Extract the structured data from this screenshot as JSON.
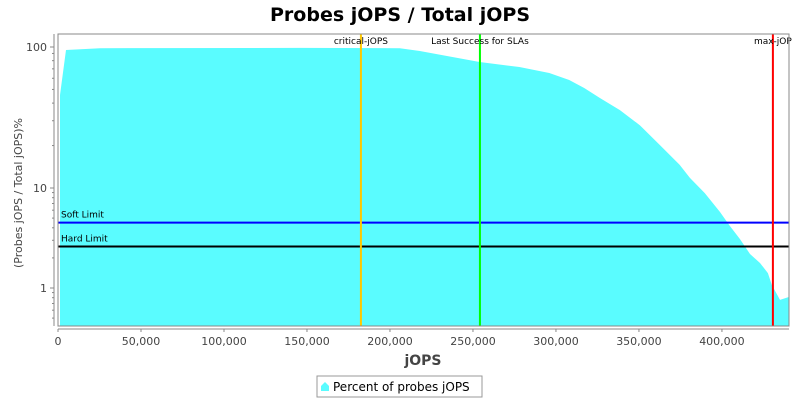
{
  "chart_data": {
    "type": "area",
    "title": "Probes jOPS / Total jOPS",
    "xlabel": "jOPS",
    "ylabel": "(Probes jOPS / Total jOPS)%",
    "xlim": [
      0,
      440400
    ],
    "ylim": [
      0.42,
      124
    ],
    "yscale": "log",
    "x_ticks": [
      0,
      50000,
      100000,
      150000,
      200000,
      250000,
      300000,
      350000,
      400000
    ],
    "x_tick_labels": [
      "0",
      "50,000",
      "100,000",
      "150,000",
      "200,000",
      "250,000",
      "300,000",
      "350,000",
      "400,000"
    ],
    "y_ticks": [
      1,
      10,
      100
    ],
    "y_tick_labels": [
      "1",
      "10",
      "100"
    ],
    "series": [
      {
        "name": "Percent of probes jOPS",
        "color": "#5afcff",
        "x": [
          1200,
          4800,
          25300,
          145800,
          206000,
          218000,
          254000,
          278000,
          296000,
          308000,
          317000,
          326500,
          338500,
          350500,
          362500,
          374500,
          380700,
          389700,
          398800,
          404800,
          410800,
          416900,
          422900,
          427700,
          430100,
          435000,
          439800
        ],
        "y": [
          45.7,
          95.2,
          98.0,
          98.5,
          98.0,
          93.7,
          78.3,
          72.1,
          65.4,
          58.3,
          51.2,
          43.5,
          35.7,
          27.9,
          20.2,
          14.6,
          11.8,
          8.9,
          5.75,
          4.17,
          3.09,
          2.19,
          1.78,
          1.41,
          1.07,
          0.76,
          0.81
        ]
      }
    ],
    "horizontal_markers": [
      {
        "label": "Soft Limit",
        "value": 4.5,
        "color": "#0000ff"
      },
      {
        "label": "Hard Limit",
        "value": 2.6,
        "color": "#000000"
      }
    ],
    "vertical_markers": [
      {
        "label": "critical-jOPS",
        "value": 182500,
        "color": "#ffc800"
      },
      {
        "label": "Last Success for SLAs",
        "value": 254200,
        "color": "#00ff00"
      },
      {
        "label": "max-jOP",
        "value": 430700,
        "color": "#ff0000"
      }
    ],
    "legend": {
      "placement": "bottom",
      "label": "Percent of probes jOPS"
    },
    "grid": false
  }
}
